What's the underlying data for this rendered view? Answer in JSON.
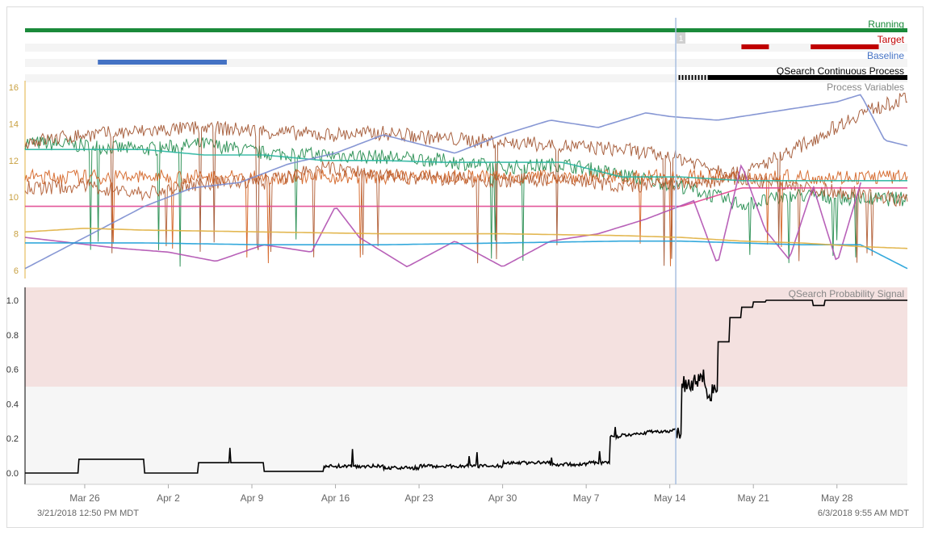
{
  "timeline": {
    "start_label": "3/21/2018 12:50 PM  MDT",
    "end_label": "6/3/2018 9:55 AM  MDT",
    "cursor_badge": "1",
    "x_ticks": [
      "Mar 26",
      "Apr 2",
      "Apr 9",
      "Apr 16",
      "Apr 23",
      "Apr 30",
      "May 7",
      "May 14",
      "May 21",
      "May 28"
    ]
  },
  "tracks": [
    {
      "name": "Running",
      "color": "#1a8a3a",
      "segments": [
        [
          0,
          73.9
        ]
      ]
    },
    {
      "name": "Target",
      "color": "#c00000",
      "segments": [
        [
          60,
          62.3
        ],
        [
          65.8,
          71.5
        ]
      ]
    },
    {
      "name": "Baseline",
      "color": "#4472c4",
      "segments": [
        [
          6.1,
          16.9
        ]
      ]
    },
    {
      "name": "QSearch  Continuous  Process",
      "color": "#000000",
      "segments": [
        [
          54.6,
          73.9
        ]
      ]
    }
  ],
  "process_panel": {
    "title": "Process Variables",
    "y_ticks": [
      "16",
      "14",
      "12",
      "10",
      "8",
      "6"
    ]
  },
  "chart_data": {
    "type": "line",
    "title": "QSearch Probability Signal",
    "ylim": [
      0,
      1.05
    ],
    "y_ticks": [
      "1.0",
      "0.8",
      "0.6",
      "0.4",
      "0.2",
      "0.0"
    ],
    "threshold": 0.5,
    "x_unit": "days since 3/21/2018",
    "x": [
      0,
      4,
      4.5,
      10,
      14,
      14.5,
      20,
      24,
      25,
      30,
      33,
      40,
      44,
      47,
      49,
      50,
      51,
      52,
      54,
      55,
      56,
      57,
      58,
      59,
      60,
      61,
      62,
      63,
      65,
      66,
      67,
      68,
      69,
      70,
      71,
      72,
      73.9
    ],
    "series": [
      {
        "name": "",
        "values": [
          0.0,
          0.0,
          0.08,
          0.0,
          0.0,
          0.06,
          0.01,
          0.01,
          0.04,
          0.03,
          0.04,
          0.06,
          0.05,
          0.06,
          0.21,
          0.22,
          0.23,
          0.24,
          0.25,
          0.52,
          0.55,
          0.47,
          0.76,
          0.9,
          0.96,
          0.99,
          1.0,
          1.0,
          1.0,
          0.97,
          1.0,
          1.0,
          1.0,
          1.0,
          1.0,
          1.0,
          1.0
        ]
      }
    ],
    "threshold_zone_color": "#f4e1e0",
    "background_color": "#f6f6f6",
    "line_color": "#000000"
  },
  "cursor": {
    "day": 54.5
  },
  "process_lines": [
    {
      "color": "#1f8a4a",
      "style": "noisy",
      "x": [
        0,
        5,
        10,
        15,
        20,
        25,
        30,
        35,
        40,
        45,
        50,
        55,
        60,
        65,
        70,
        73.9
      ],
      "values": [
        13.0,
        12.8,
        12.6,
        12.9,
        12.4,
        12.3,
        12.2,
        12.0,
        11.6,
        11.8,
        11.2,
        10.6,
        9.6,
        10.1,
        9.9,
        9.9
      ]
    },
    {
      "color": "#a0522d",
      "style": "noisy",
      "x": [
        0,
        5,
        10,
        15,
        20,
        25,
        30,
        35,
        40,
        45,
        50,
        55,
        60,
        65,
        70,
        73.9
      ],
      "values": [
        13.0,
        13.4,
        13.6,
        13.8,
        13.6,
        13.4,
        13.5,
        13.2,
        13.0,
        12.8,
        12.6,
        12.1,
        11.2,
        12.8,
        14.6,
        15.4
      ]
    },
    {
      "color": "#d35f1e",
      "style": "noisy",
      "x": [
        0,
        10,
        20,
        30,
        40,
        50,
        60,
        70,
        73.9
      ],
      "values": [
        11.1,
        11.1,
        11.1,
        11.1,
        11.1,
        11.1,
        11.1,
        11.1,
        11.1
      ]
    },
    {
      "color": "#b05a30",
      "style": "noisy",
      "x": [
        0,
        5,
        10,
        15,
        20,
        25,
        30,
        35,
        40,
        45,
        50,
        55,
        60,
        65,
        70,
        73.9
      ],
      "values": [
        10.5,
        10.6,
        10.2,
        10.8,
        10.8,
        11.6,
        11.2,
        11.0,
        10.9,
        11.0,
        10.6,
        10.7,
        11.0,
        10.5,
        10.2,
        9.8
      ]
    },
    {
      "color": "#2ab5a0",
      "style": "flat",
      "x": [
        0,
        10,
        15,
        20,
        25,
        30,
        35,
        45,
        50,
        55,
        60,
        73.9
      ],
      "values": [
        12.6,
        12.6,
        12.3,
        12.3,
        12.0,
        12.0,
        11.9,
        11.9,
        11.1,
        11.1,
        10.9,
        10.9
      ]
    },
    {
      "color": "#e0458f",
      "style": "flat",
      "x": [
        0,
        20,
        40,
        55,
        60,
        73.9
      ],
      "values": [
        9.5,
        9.5,
        9.5,
        9.5,
        10.5,
        10.5
      ]
    },
    {
      "color": "#7a8ccf",
      "style": "flat",
      "x": [
        0,
        5,
        10,
        14,
        18,
        22,
        26,
        30,
        36,
        40,
        44,
        48,
        52,
        54,
        58,
        62,
        64,
        68,
        70,
        72,
        73.9
      ],
      "values": [
        6.1,
        7.8,
        9.5,
        10.5,
        10.8,
        11.8,
        12.4,
        13.4,
        12.4,
        13.4,
        14.2,
        13.8,
        14.6,
        14.4,
        14.2,
        14.6,
        14.8,
        15.2,
        15.6,
        13.1,
        12.8
      ]
    },
    {
      "color": "#b050b0",
      "style": "flat",
      "x": [
        0,
        4,
        8,
        12,
        16,
        20,
        24,
        26,
        28,
        32,
        36,
        40,
        44,
        48,
        52,
        56,
        58,
        60,
        62,
        64,
        66,
        68,
        70
      ],
      "values": [
        7.8,
        7.5,
        7.2,
        7.0,
        6.5,
        7.4,
        7.0,
        9.5,
        7.8,
        6.2,
        7.6,
        6.2,
        7.6,
        8.0,
        8.8,
        9.8,
        6.3,
        11.8,
        8.2,
        6.6,
        10.6,
        6.4,
        10.8
      ]
    },
    {
      "color": "#1ea0d8",
      "style": "flat",
      "x": [
        0,
        10,
        20,
        30,
        40,
        50,
        55,
        60,
        65,
        70,
        73.9
      ],
      "values": [
        7.5,
        7.5,
        7.4,
        7.4,
        7.5,
        7.6,
        7.6,
        7.5,
        7.4,
        7.4,
        6.1
      ]
    },
    {
      "color": "#e0b040",
      "style": "flat",
      "x": [
        0,
        5,
        10,
        20,
        30,
        40,
        50,
        55,
        60,
        65,
        70,
        73.9
      ],
      "values": [
        8.1,
        8.3,
        8.2,
        8.1,
        8.0,
        8.0,
        7.9,
        7.8,
        7.6,
        7.5,
        7.3,
        7.2
      ]
    }
  ]
}
